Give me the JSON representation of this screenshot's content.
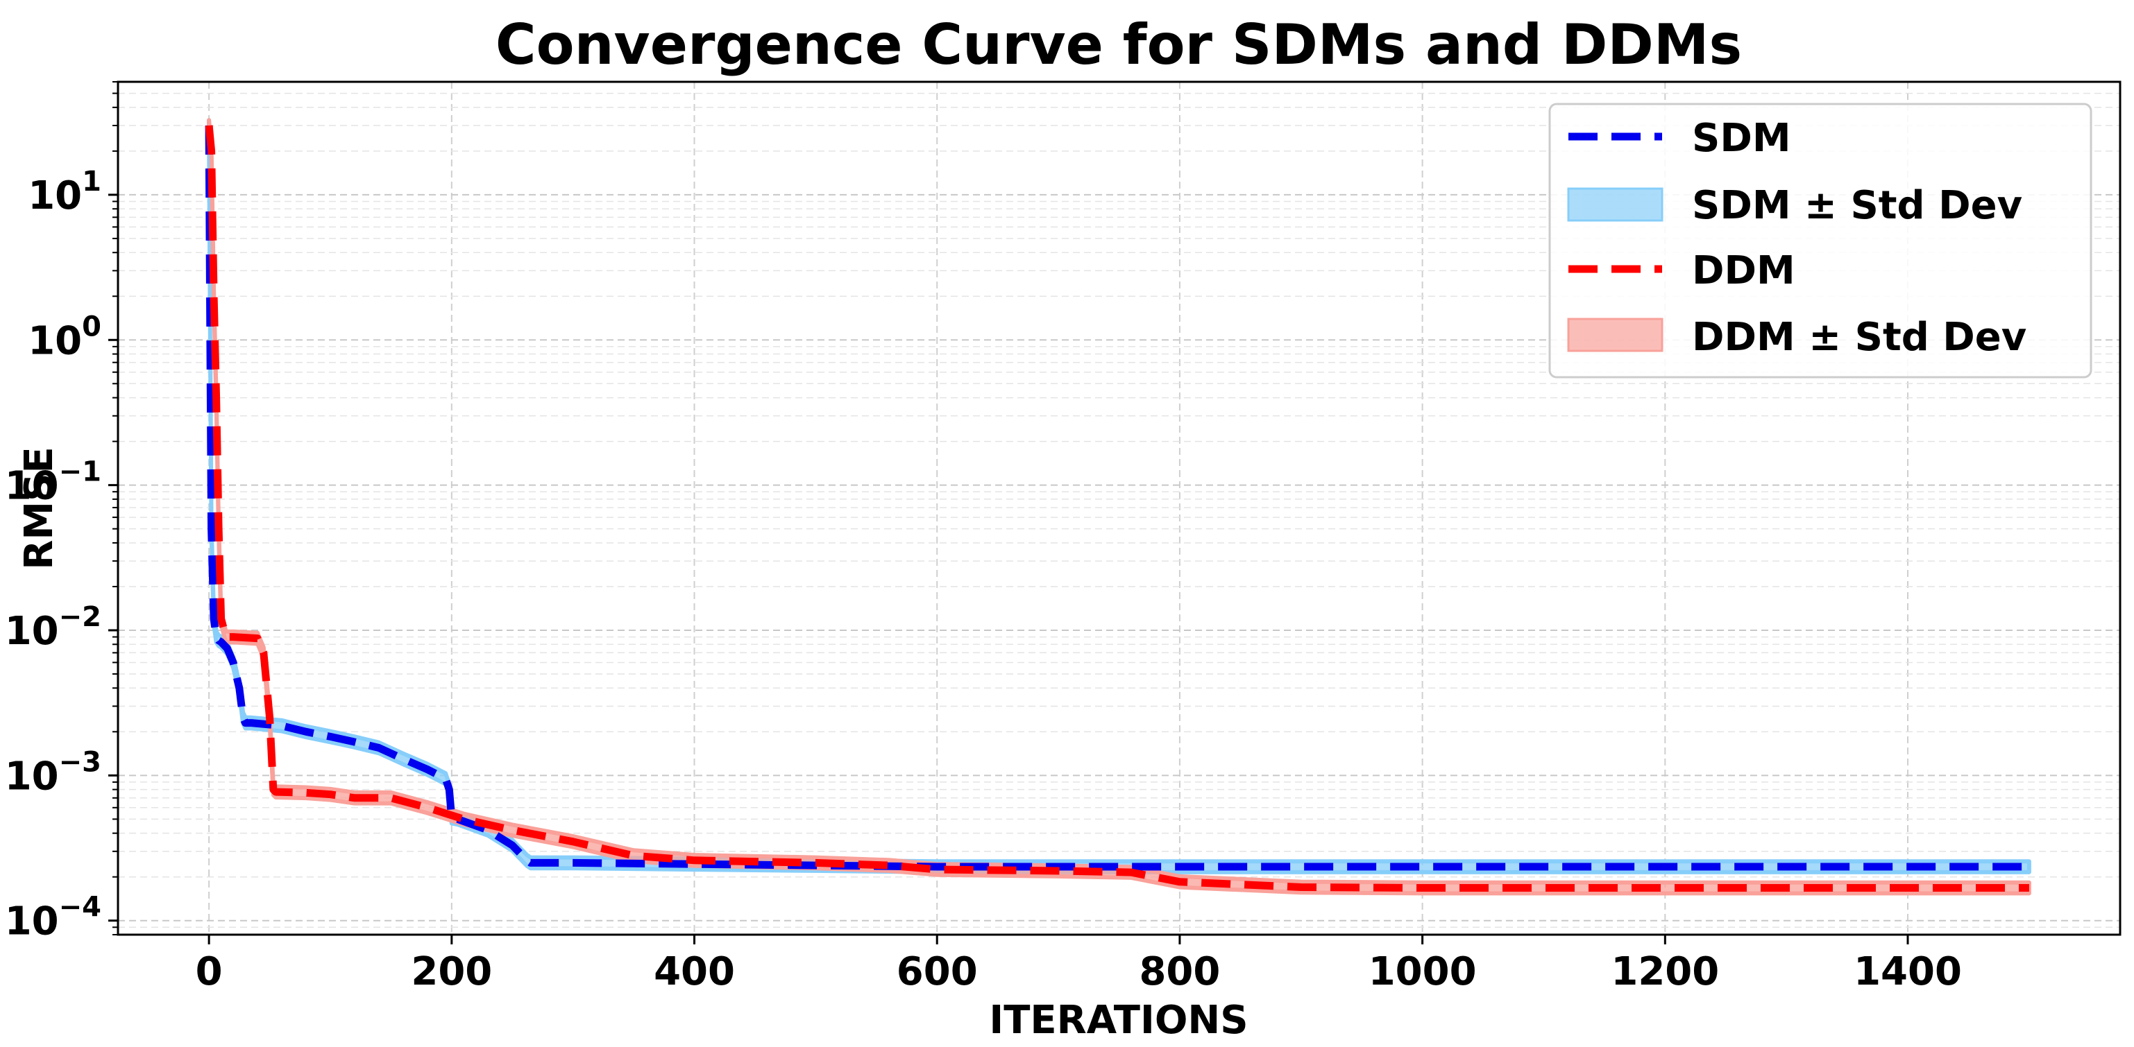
{
  "chart_data": {
    "type": "line",
    "title": "Convergence Curve for SDMs and DDMs",
    "xlabel": "ITERATIONS",
    "ylabel": "RMSE",
    "yscale": "log",
    "xlim": [
      -75,
      1575
    ],
    "ylim": [
      8e-05,
      60
    ],
    "xticks": [
      0,
      200,
      400,
      600,
      800,
      1000,
      1200,
      1400
    ],
    "yticks": [
      {
        "value": 0.0001,
        "base": "10",
        "exp": "−4"
      },
      {
        "value": 0.001,
        "base": "10",
        "exp": "−3"
      },
      {
        "value": 0.01,
        "base": "10",
        "exp": "−2"
      },
      {
        "value": 0.1,
        "base": "10",
        "exp": "−1"
      },
      {
        "value": 1,
        "base": "10",
        "exp": "0"
      },
      {
        "value": 10,
        "base": "10",
        "exp": "1"
      }
    ],
    "grid": true,
    "legend_position": "top-right",
    "legend": [
      "SDM",
      "SDM ± Std Dev",
      "DDM",
      "DDM ± Std Dev"
    ],
    "series": [
      {
        "name": "SDM",
        "color": "#0000ee",
        "band_color": "#87cefa",
        "x": [
          0,
          1,
          2,
          4,
          6,
          8,
          10,
          15,
          20,
          25,
          28,
          30,
          35,
          60,
          80,
          100,
          120,
          140,
          160,
          180,
          195,
          198,
          200,
          205,
          230,
          250,
          262,
          265,
          300,
          400,
          500,
          600,
          800,
          1000,
          1200,
          1500
        ],
        "y": [
          30,
          1.0,
          0.05,
          0.012,
          0.009,
          0.0085,
          0.0083,
          0.0075,
          0.006,
          0.004,
          0.0025,
          0.0023,
          0.0023,
          0.0022,
          0.002,
          0.00185,
          0.0017,
          0.00155,
          0.0013,
          0.0011,
          0.00095,
          0.0008,
          0.00051,
          0.0005,
          0.00042,
          0.00033,
          0.00026,
          0.00025,
          0.00025,
          0.000245,
          0.00024,
          0.000235,
          0.000235,
          0.000235,
          0.000235,
          0.000235
        ]
      },
      {
        "name": "DDM",
        "color": "#ff0000",
        "band_color": "#f9a19a",
        "x": [
          0,
          2,
          4,
          6,
          8,
          10,
          14,
          20,
          40,
          45,
          50,
          53,
          55,
          80,
          100,
          120,
          150,
          180,
          210,
          250,
          300,
          350,
          400,
          500,
          560,
          600,
          700,
          760,
          800,
          900,
          1000,
          1200,
          1500
        ],
        "y": [
          30,
          20,
          2.0,
          0.4,
          0.05,
          0.012,
          0.009,
          0.009,
          0.0088,
          0.007,
          0.0025,
          0.0008,
          0.00077,
          0.00076,
          0.00074,
          0.0007,
          0.0007,
          0.0006,
          0.0005,
          0.00042,
          0.00035,
          0.00028,
          0.00026,
          0.00025,
          0.00024,
          0.000225,
          0.00022,
          0.000215,
          0.000185,
          0.00017,
          0.000168,
          0.000168,
          0.000168
        ]
      }
    ]
  }
}
